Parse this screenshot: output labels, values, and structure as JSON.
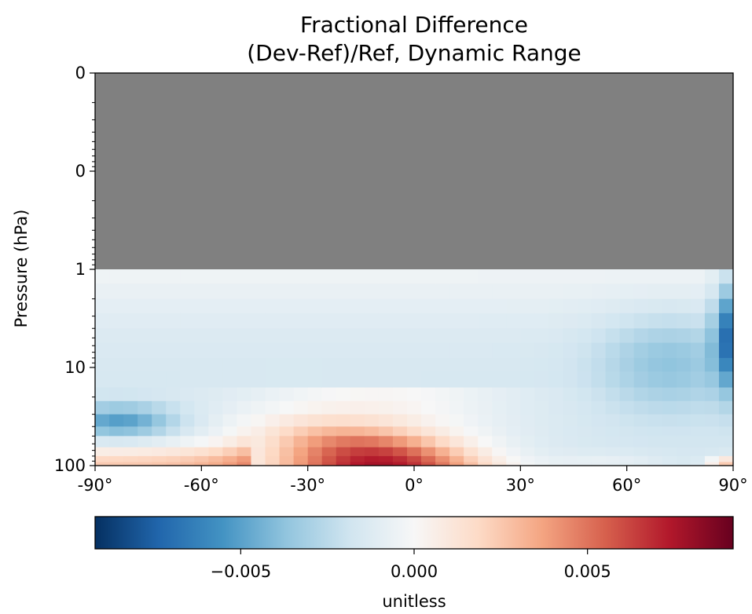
{
  "chart_data": {
    "type": "heatmap",
    "title": "Fractional Difference",
    "subtitle": "(Dev-Ref)/Ref, Dynamic Range",
    "ylabel": "Pressure (hPa)",
    "xlabel": "",
    "x_tick_labels": [
      "-90°",
      "-60°",
      "-30°",
      "0°",
      "30°",
      "60°",
      "90°"
    ],
    "x_ticks": [
      -90,
      -60,
      -30,
      0,
      30,
      60,
      90
    ],
    "y_tick_labels": [
      "0",
      "0",
      "1",
      "10",
      "100"
    ],
    "y_ticks": [
      0.01,
      0.1,
      1,
      10,
      100
    ],
    "y_scale": "log",
    "y_inverted": true,
    "xlim": [
      -90,
      90
    ],
    "ylim": [
      100,
      0.01
    ],
    "missing_region": {
      "pressure_below": 1.0,
      "color": "#808080"
    },
    "colorbar": {
      "label": "unitless",
      "range": [
        -0.0092,
        0.0092
      ],
      "tick_labels": [
        "−0.005",
        "0.000",
        "0.005"
      ],
      "ticks": [
        -0.005,
        0.0,
        0.005
      ],
      "colormap": "RdBu_r",
      "colors": [
        "#053061",
        "#2166ac",
        "#4393c3",
        "#92c5de",
        "#d1e5f0",
        "#f7f7f7",
        "#fddbc7",
        "#f4a582",
        "#d6604d",
        "#b2182b",
        "#67001f"
      ]
    },
    "lat_res_deg": 4,
    "data_pressure_levels": [
      1,
      1.4,
      2,
      2.8,
      4,
      5.6,
      8,
      11,
      16,
      22,
      30,
      40,
      50,
      65,
      80,
      92,
      100
    ],
    "data_summary": [
      {
        "region": "tropics-subtropics lower levels 60-100 hPa, lat -45 to 35",
        "value": 0.007
      },
      {
        "region": "tropics near 20-50 hPa",
        "value": 0.003
      },
      {
        "region": "southern high latitudes 25-45 hPa",
        "value": -0.004
      },
      {
        "region": "northern polar column near 85-90 lat, 2-15 hPa",
        "value": -0.005
      },
      {
        "region": "mid-latitude upper levels 1-30 hPa",
        "value": -0.0015
      },
      {
        "region": "north polar surface 90-100 hPa",
        "value": 0.0035
      }
    ]
  }
}
